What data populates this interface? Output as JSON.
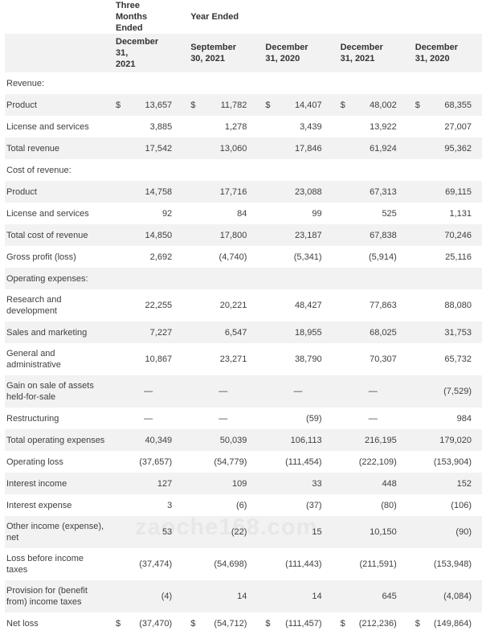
{
  "colors": {
    "stripe": "#f2f2f2",
    "body_text": "#3f3f3f",
    "header_text": "#333333",
    "background": "#ffffff"
  },
  "watermark": {
    "text": "zaoche168.com"
  },
  "table": {
    "currency_symbol": "$",
    "period_headers": [
      {
        "label": "Three Months\nEnded"
      },
      {
        "label": "Year Ended"
      }
    ],
    "column_headers": [
      "December 31,\n2021",
      "September\n30, 2021",
      "December\n31, 2020",
      "December\n31, 2021",
      "December\n31, 2020"
    ],
    "rows": [
      {
        "label": "Revenue:",
        "section": true
      },
      {
        "label": "Product",
        "dollar": true,
        "values": [
          "13,657",
          "11,782",
          "14,407",
          "48,002",
          "68,355"
        ]
      },
      {
        "label": "License and services",
        "values": [
          "3,885",
          "1,278",
          "3,439",
          "13,922",
          "27,007"
        ]
      },
      {
        "label": "Total revenue",
        "values": [
          "17,542",
          "13,060",
          "17,846",
          "61,924",
          "95,362"
        ]
      },
      {
        "label": "Cost of revenue:",
        "section": true
      },
      {
        "label": "Product",
        "values": [
          "14,758",
          "17,716",
          "23,088",
          "67,313",
          "69,115"
        ]
      },
      {
        "label": "License and services",
        "values": [
          "92",
          "84",
          "99",
          "525",
          "1,131"
        ]
      },
      {
        "label": "Total cost of revenue",
        "values": [
          "14,850",
          "17,800",
          "23,187",
          "67,838",
          "70,246"
        ]
      },
      {
        "label": "Gross profit (loss)",
        "values": [
          "2,692",
          "(4,740)",
          "(5,341)",
          "(5,914)",
          "25,116"
        ]
      },
      {
        "label": "Operating expenses:",
        "section": true
      },
      {
        "label": "Research and\ndevelopment",
        "values": [
          "22,255",
          "20,221",
          "48,427",
          "77,863",
          "88,080"
        ]
      },
      {
        "label": "Sales and marketing",
        "values": [
          "7,227",
          "6,547",
          "18,955",
          "68,025",
          "31,753"
        ]
      },
      {
        "label": "General and\nadministrative",
        "values": [
          "10,867",
          "23,271",
          "38,790",
          "70,307",
          "65,732"
        ]
      },
      {
        "label": "Gain on sale of assets\nheld-for-sale",
        "values": [
          "—",
          "—",
          "—",
          "—",
          "(7,529)"
        ]
      },
      {
        "label": "Restructuring",
        "values": [
          "—",
          "—",
          "(59)",
          "—",
          "984"
        ]
      },
      {
        "label": "Total operating expenses",
        "values": [
          "40,349",
          "50,039",
          "106,113",
          "216,195",
          "179,020"
        ]
      },
      {
        "label": "Operating loss",
        "values": [
          "(37,657)",
          "(54,779)",
          "(111,454)",
          "(222,109)",
          "(153,904)"
        ]
      },
      {
        "label": "Interest income",
        "values": [
          "127",
          "109",
          "33",
          "448",
          "152"
        ]
      },
      {
        "label": "Interest expense",
        "values": [
          "3",
          "(6)",
          "(37)",
          "(80)",
          "(106)"
        ]
      },
      {
        "label": "Other income (expense),\nnet",
        "values": [
          "53",
          "(22)",
          "15",
          "10,150",
          "(90)"
        ]
      },
      {
        "label": "Loss before income\ntaxes",
        "values": [
          "(37,474)",
          "(54,698)",
          "(111,443)",
          "(211,591)",
          "(153,948)"
        ]
      },
      {
        "label": "Provision for (benefit\nfrom) income taxes",
        "values": [
          "(4)",
          "14",
          "14",
          "645",
          "(4,084)"
        ]
      },
      {
        "label": "Net loss",
        "dollar": true,
        "values": [
          "(37,470)",
          "(54,712)",
          "(111,457)",
          "(212,236)",
          "(149,864)"
        ]
      }
    ]
  }
}
